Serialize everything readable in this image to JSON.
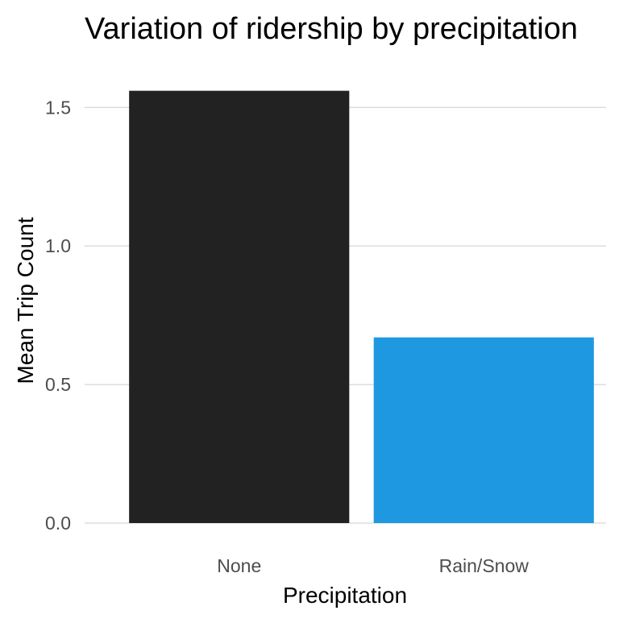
{
  "chart_data": {
    "type": "bar",
    "title": "Variation of ridership by precipitation",
    "xlabel": "Precipitation",
    "ylabel": "Mean Trip Count",
    "categories": [
      "None",
      "Rain/Snow"
    ],
    "values": [
      1.56,
      0.67
    ],
    "colors": [
      "#222222",
      "#1e98e0"
    ],
    "ylim": [
      0,
      1.62
    ],
    "yticks": [
      0.0,
      0.5,
      1.0,
      1.5
    ],
    "ytick_labels": [
      "0.0",
      "0.5",
      "1.0",
      "1.5"
    ],
    "grid": "horizontal major",
    "legend": "none"
  }
}
